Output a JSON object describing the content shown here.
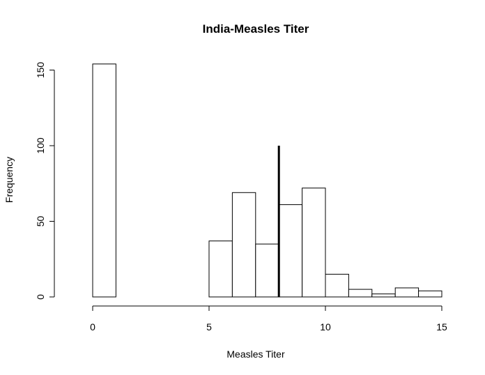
{
  "chart_data": {
    "type": "bar",
    "title": "India-Measles Titer",
    "xlabel": "Measles Titer",
    "ylabel": "Frequency",
    "bins": [
      {
        "start": 0,
        "end": 1,
        "count": 154
      },
      {
        "start": 1,
        "end": 2,
        "count": 0
      },
      {
        "start": 2,
        "end": 3,
        "count": 0
      },
      {
        "start": 3,
        "end": 4,
        "count": 0
      },
      {
        "start": 4,
        "end": 5,
        "count": 0
      },
      {
        "start": 5,
        "end": 6,
        "count": 37
      },
      {
        "start": 6,
        "end": 7,
        "count": 69
      },
      {
        "start": 7,
        "end": 8,
        "count": 35
      },
      {
        "start": 8,
        "end": 9,
        "count": 61
      },
      {
        "start": 9,
        "end": 10,
        "count": 72
      },
      {
        "start": 10,
        "end": 11,
        "count": 15
      },
      {
        "start": 11,
        "end": 12,
        "count": 5
      },
      {
        "start": 12,
        "end": 13,
        "count": 2
      },
      {
        "start": 13,
        "end": 14,
        "count": 6
      },
      {
        "start": 14,
        "end": 15,
        "count": 4
      }
    ],
    "reference_line": {
      "x": 8,
      "y_top": 100
    },
    "xlim": [
      0,
      15
    ],
    "ylim": [
      0,
      154
    ],
    "x_ticks": [
      0,
      5,
      10,
      15
    ],
    "y_ticks": [
      0,
      50,
      100,
      150
    ],
    "x_tick_labels": [
      "0",
      "5",
      "10",
      "15"
    ],
    "y_tick_labels": [
      "0",
      "50",
      "100",
      "150"
    ],
    "grid": false,
    "legend": "none"
  }
}
